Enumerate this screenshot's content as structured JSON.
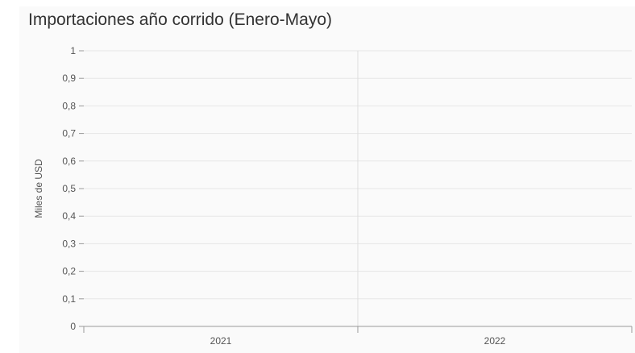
{
  "chart_data": {
    "type": "bar",
    "title": "Importaciones año corrido (Enero-Mayo)",
    "xlabel": "",
    "ylabel": "Miles de USD",
    "categories": [
      "2021",
      "2022"
    ],
    "series": [
      {
        "values": [
          0,
          0
        ]
      }
    ],
    "ylim": [
      0,
      1
    ],
    "yticks": [
      "0",
      "0,1",
      "0,2",
      "0,3",
      "0,4",
      "0,5",
      "0,6",
      "0,7",
      "0,8",
      "0,9",
      "1"
    ],
    "grid": true,
    "legend": "none",
    "colors": {
      "grid": "#e6e6e6",
      "axis": "#999999",
      "divider": "#dddddd",
      "tick_text": "#555555",
      "background": "#fafafa"
    }
  }
}
